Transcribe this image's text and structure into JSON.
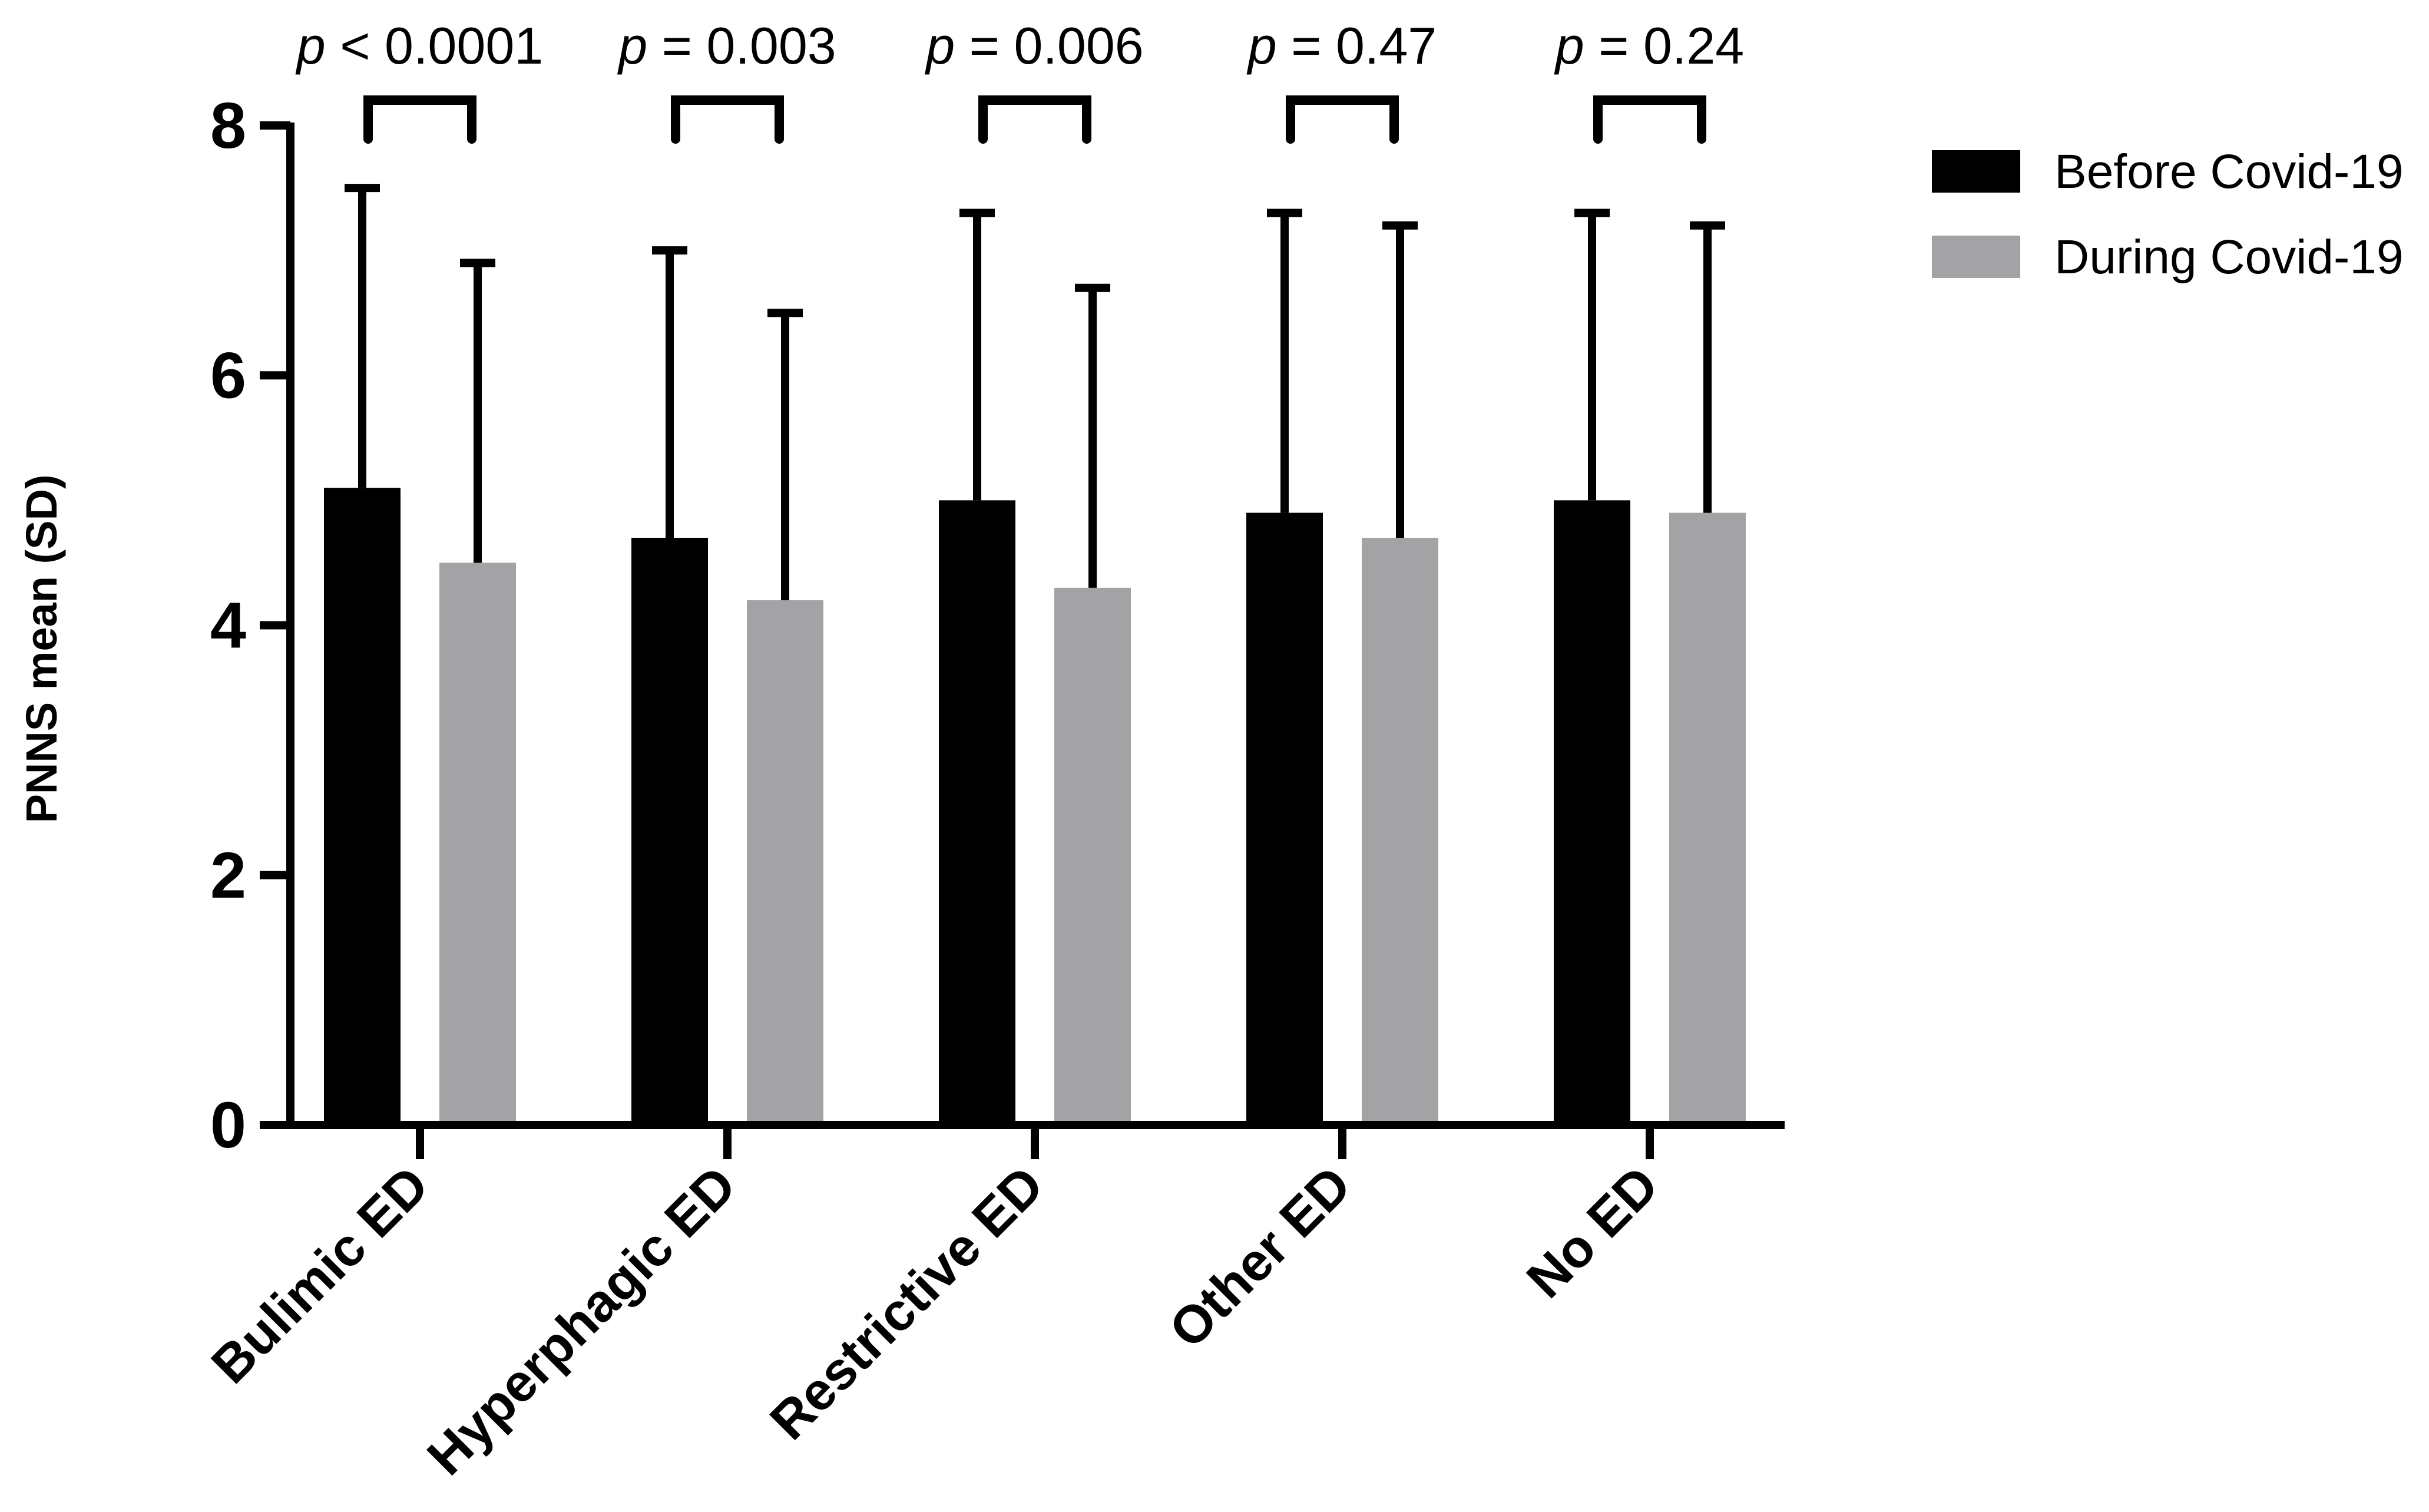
{
  "chart_data": {
    "type": "bar",
    "title": "",
    "xlabel": "",
    "ylabel": "PNNS mean (SD)",
    "ylim": [
      0,
      8
    ],
    "yticks": [
      "0",
      "2",
      "4",
      "6",
      "8"
    ],
    "grid": false,
    "legend_position": "top-right",
    "categories": [
      "Bulimic ED",
      "Hyperphagic ED",
      "Restrictive ED",
      "Other ED",
      "No ED"
    ],
    "series": [
      {
        "name": "Before Covid-19",
        "color": "#000000",
        "values": [
          5.1,
          4.7,
          5.0,
          4.9,
          5.0
        ],
        "sd": [
          2.4,
          2.3,
          2.3,
          2.4,
          2.3
        ]
      },
      {
        "name": "During Covid-19",
        "color": "#a3a3a6",
        "values": [
          4.5,
          4.2,
          4.3,
          4.7,
          4.9
        ],
        "sd": [
          2.4,
          2.3,
          2.4,
          2.5,
          2.3
        ]
      }
    ],
    "annotations": [
      {
        "category": "Bulimic ED",
        "p_symbol": "p",
        "p_text": " < 0.0001"
      },
      {
        "category": "Hyperphagic ED",
        "p_symbol": "p",
        "p_text": " = 0.003"
      },
      {
        "category": "Restrictive ED",
        "p_symbol": "p",
        "p_text": " = 0.006"
      },
      {
        "category": "Other ED",
        "p_symbol": "p",
        "p_text": " = 0.47"
      },
      {
        "category": "No ED",
        "p_symbol": "p",
        "p_text": " = 0.24"
      }
    ]
  }
}
